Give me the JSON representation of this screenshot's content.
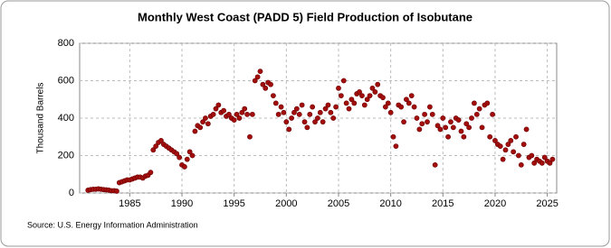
{
  "chart_data": {
    "type": "scatter",
    "title": "Monthly West Coast (PADD 5) Field Production of Isobutane",
    "ylabel": "Thousand Barrels",
    "source": "Source: U.S. Energy Information Administration",
    "color": "#a30d0d",
    "grid": true,
    "xlim": [
      1980.2,
      2025.9
    ],
    "ylim": [
      0,
      800
    ],
    "xticks": [
      1985,
      1990,
      1995,
      2000,
      2005,
      2010,
      2015,
      2020,
      2025
    ],
    "yticks": [
      0,
      200,
      400,
      600,
      800
    ],
    "x": [
      1981,
      1981.25,
      1981.5,
      1981.75,
      1982,
      1982.25,
      1982.5,
      1982.75,
      1983,
      1983.25,
      1983.5,
      1983.75,
      1984,
      1984.25,
      1984.5,
      1984.75,
      1985,
      1985.25,
      1985.5,
      1985.75,
      1986,
      1986.25,
      1986.5,
      1986.75,
      1987,
      1987.25,
      1987.5,
      1987.75,
      1988,
      1988.25,
      1988.5,
      1988.75,
      1989,
      1989.25,
      1989.5,
      1989.75,
      1990,
      1990.25,
      1990.5,
      1990.75,
      1991,
      1991.25,
      1991.5,
      1991.75,
      1992,
      1992.25,
      1992.5,
      1992.75,
      1993,
      1993.25,
      1993.5,
      1993.75,
      1994,
      1994.25,
      1994.5,
      1994.75,
      1995,
      1995.25,
      1995.5,
      1995.75,
      1996,
      1996.25,
      1996.5,
      1996.75,
      1997,
      1997.25,
      1997.5,
      1997.75,
      1998,
      1998.25,
      1998.5,
      1998.75,
      1999,
      1999.25,
      1999.5,
      1999.75,
      2000,
      2000.25,
      2000.5,
      2000.75,
      2001,
      2001.25,
      2001.5,
      2001.75,
      2002,
      2002.25,
      2002.5,
      2002.75,
      2003,
      2003.25,
      2003.5,
      2003.75,
      2004,
      2004.25,
      2004.5,
      2004.75,
      2005,
      2005.25,
      2005.5,
      2005.75,
      2006,
      2006.25,
      2006.5,
      2006.75,
      2007,
      2007.25,
      2007.5,
      2007.75,
      2008,
      2008.25,
      2008.5,
      2008.75,
      2009,
      2009.25,
      2009.5,
      2009.75,
      2010,
      2010.25,
      2010.5,
      2010.75,
      2011,
      2011.25,
      2011.5,
      2011.75,
      2012,
      2012.25,
      2012.5,
      2012.75,
      2013,
      2013.25,
      2013.5,
      2013.75,
      2014,
      2014.25,
      2014.5,
      2014.75,
      2015,
      2015.25,
      2015.5,
      2015.75,
      2016,
      2016.25,
      2016.5,
      2016.75,
      2017,
      2017.25,
      2017.5,
      2017.75,
      2018,
      2018.25,
      2018.5,
      2018.75,
      2019,
      2019.25,
      2019.5,
      2019.75,
      2020,
      2020.25,
      2020.5,
      2020.75,
      2021,
      2021.25,
      2021.5,
      2021.75,
      2022,
      2022.25,
      2022.5,
      2022.75,
      2023,
      2023.25,
      2023.5,
      2023.75,
      2024,
      2024.25,
      2024.5,
      2024.75,
      2025,
      2025.25,
      2025.5
    ],
    "values": [
      15,
      18,
      20,
      20,
      22,
      20,
      18,
      17,
      15,
      12,
      12,
      10,
      55,
      60,
      65,
      70,
      70,
      75,
      80,
      85,
      85,
      80,
      90,
      95,
      110,
      230,
      250,
      270,
      280,
      260,
      250,
      240,
      230,
      220,
      210,
      190,
      150,
      140,
      180,
      220,
      200,
      330,
      360,
      350,
      380,
      400,
      370,
      410,
      420,
      450,
      470,
      430,
      440,
      410,
      420,
      400,
      390,
      420,
      400,
      430,
      450,
      420,
      300,
      420,
      600,
      620,
      650,
      580,
      560,
      590,
      580,
      520,
      480,
      420,
      460,
      430,
      380,
      340,
      400,
      430,
      450,
      420,
      470,
      380,
      350,
      420,
      460,
      380,
      400,
      430,
      380,
      450,
      470,
      430,
      400,
      460,
      560,
      520,
      600,
      480,
      450,
      500,
      480,
      530,
      540,
      520,
      470,
      500,
      520,
      560,
      540,
      580,
      520,
      510,
      460,
      480,
      430,
      300,
      250,
      470,
      460,
      380,
      500,
      480,
      520,
      460,
      400,
      340,
      370,
      420,
      380,
      460,
      420,
      150,
      360,
      340,
      400,
      350,
      300,
      380,
      350,
      400,
      390,
      330,
      300,
      370,
      350,
      400,
      480,
      420,
      450,
      350,
      470,
      480,
      300,
      420,
      280,
      260,
      250,
      180,
      230,
      260,
      280,
      220,
      300,
      200,
      150,
      260,
      340,
      190,
      200,
      160,
      180,
      170,
      160,
      190,
      170,
      160,
      180
    ]
  }
}
